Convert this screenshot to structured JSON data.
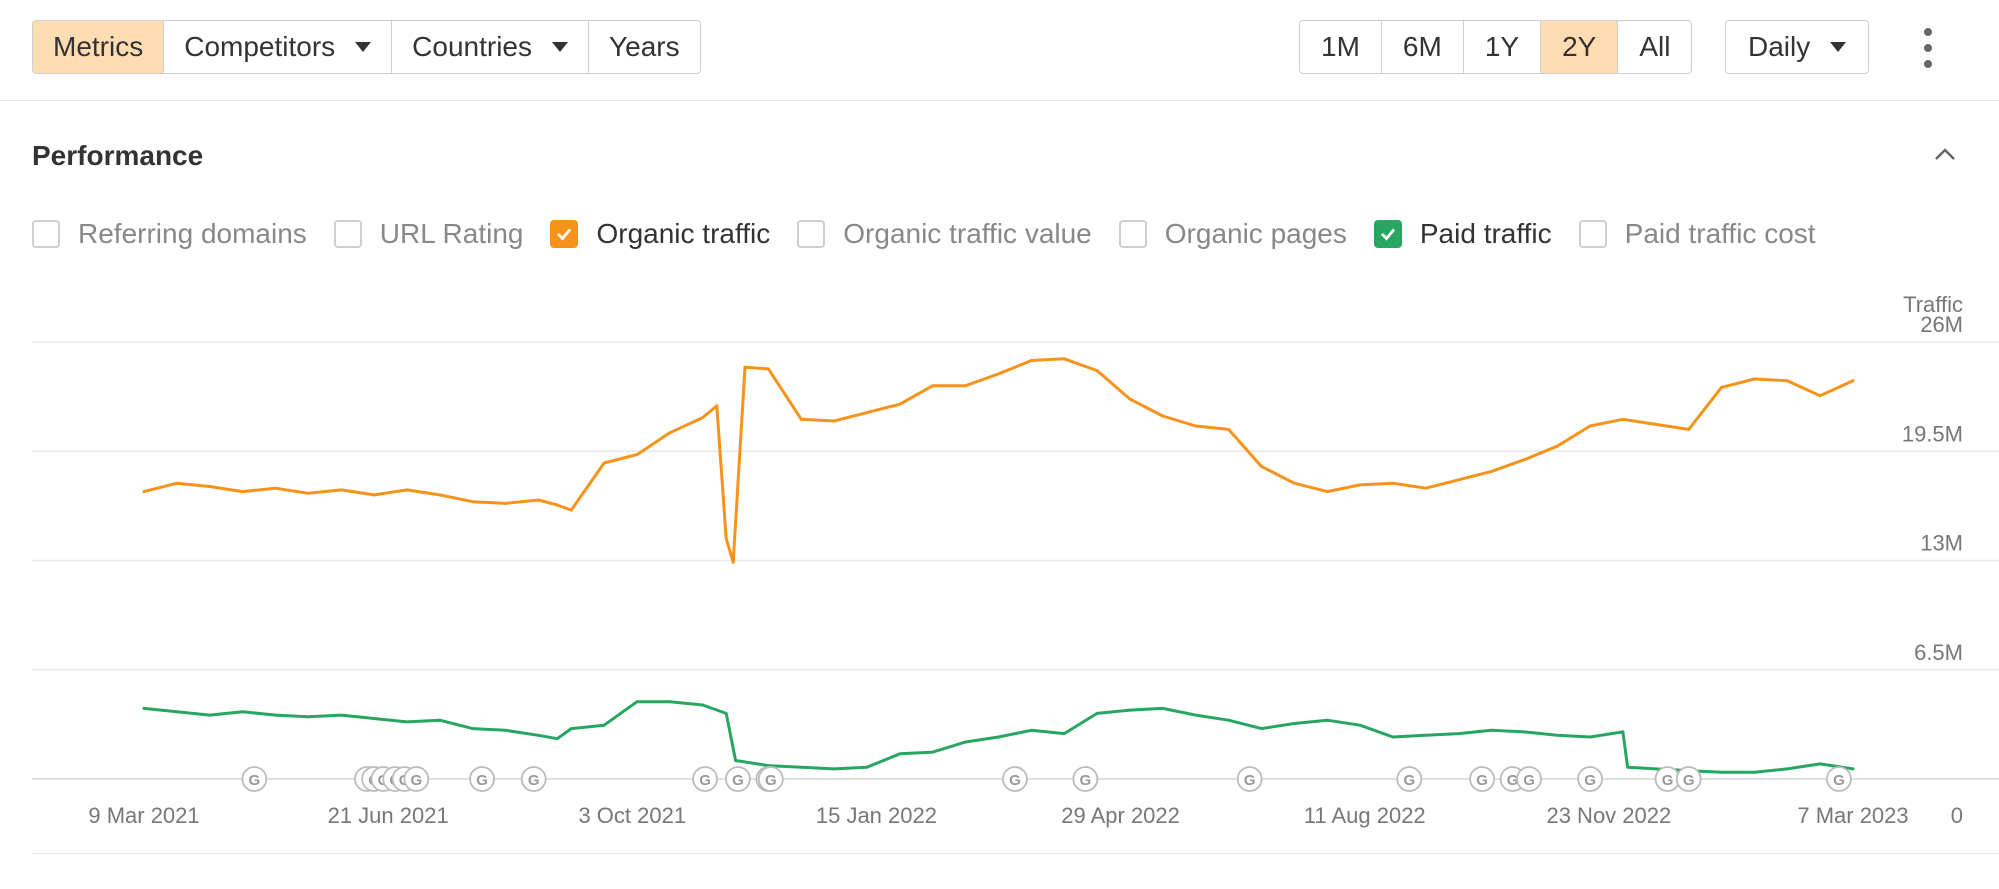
{
  "toolbar": {
    "left_buttons": [
      {
        "label": "Metrics",
        "active": true
      },
      {
        "label": "Competitors",
        "dropdown": true
      },
      {
        "label": "Countries",
        "dropdown": true
      },
      {
        "label": "Years"
      }
    ],
    "range_buttons": [
      "1M",
      "6M",
      "1Y",
      "2Y",
      "All"
    ],
    "range_active": "2Y",
    "interval": "Daily",
    "more_icon": "more-vertical-icon"
  },
  "section": {
    "title": "Performance",
    "collapse_icon": "chevron-up-icon"
  },
  "metrics": [
    {
      "label": "Referring domains",
      "checked": false,
      "color": "#cfcfcf"
    },
    {
      "label": "URL Rating",
      "checked": false,
      "color": "#cfcfcf"
    },
    {
      "label": "Organic traffic",
      "checked": true,
      "color": "#f7931a"
    },
    {
      "label": "Organic traffic value",
      "checked": false,
      "color": "#cfcfcf"
    },
    {
      "label": "Organic pages",
      "checked": false,
      "color": "#cfcfcf"
    },
    {
      "label": "Paid traffic",
      "checked": true,
      "color": "#27a661"
    },
    {
      "label": "Paid traffic cost",
      "checked": false,
      "color": "#cfcfcf"
    }
  ],
  "chart_data": {
    "type": "line",
    "ylabel": "Traffic",
    "ylim": [
      0,
      26000000
    ],
    "y_ticks": [
      "0",
      "6.5M",
      "13M",
      "19.5M",
      "26M"
    ],
    "y_tick_values": [
      0,
      6500000,
      13000000,
      19500000,
      26000000
    ],
    "xlim": [
      "2021-03-09",
      "2023-03-07"
    ],
    "x_ticks": [
      "9 Mar 2021",
      "21 Jun 2021",
      "3 Oct 2021",
      "15 Jan 2022",
      "29 Apr 2022",
      "11 Aug 2022",
      "23 Nov 2022",
      "7 Mar 2023"
    ],
    "x_tick_dates": [
      "2021-03-09",
      "2021-06-21",
      "2021-10-03",
      "2022-01-15",
      "2022-04-29",
      "2022-08-11",
      "2022-11-23",
      "2023-03-07"
    ],
    "grid": true,
    "legend": "none",
    "series": [
      {
        "name": "Organic traffic",
        "color": "#f7931a",
        "x": [
          "2021-03-09",
          "2021-03-23",
          "2021-04-06",
          "2021-04-20",
          "2021-05-04",
          "2021-05-18",
          "2021-06-01",
          "2021-06-15",
          "2021-06-29",
          "2021-07-13",
          "2021-07-27",
          "2021-08-10",
          "2021-08-24",
          "2021-09-01",
          "2021-09-07",
          "2021-09-21",
          "2021-10-05",
          "2021-10-19",
          "2021-11-02",
          "2021-11-08",
          "2021-11-12",
          "2021-11-15",
          "2021-11-20",
          "2021-11-30",
          "2021-12-14",
          "2021-12-28",
          "2022-01-11",
          "2022-01-25",
          "2022-02-08",
          "2022-02-22",
          "2022-03-08",
          "2022-03-22",
          "2022-04-05",
          "2022-04-19",
          "2022-05-03",
          "2022-05-17",
          "2022-05-31",
          "2022-06-14",
          "2022-06-28",
          "2022-07-12",
          "2022-07-26",
          "2022-08-09",
          "2022-08-23",
          "2022-09-06",
          "2022-09-20",
          "2022-10-04",
          "2022-10-18",
          "2022-11-01",
          "2022-11-15",
          "2022-11-29",
          "2022-12-13",
          "2022-12-27",
          "2023-01-10",
          "2023-01-24",
          "2023-02-07",
          "2023-02-21",
          "2023-03-07"
        ],
        "y": [
          17100000,
          17600000,
          17400000,
          17100000,
          17300000,
          17000000,
          17200000,
          16900000,
          17200000,
          16900000,
          16500000,
          16400000,
          16600000,
          16300000,
          16000000,
          18800000,
          19300000,
          20600000,
          21500000,
          22200000,
          14300000,
          12900000,
          24500000,
          24400000,
          21400000,
          21300000,
          21800000,
          22300000,
          23400000,
          23400000,
          24100000,
          24900000,
          25000000,
          24300000,
          22600000,
          21600000,
          21000000,
          20800000,
          18600000,
          17600000,
          17100000,
          17500000,
          17600000,
          17300000,
          17800000,
          18300000,
          19000000,
          19800000,
          21000000,
          21400000,
          21100000,
          20800000,
          23300000,
          23800000,
          23700000,
          22800000,
          23700000
        ]
      },
      {
        "name": "Paid traffic",
        "color": "#27a661",
        "x": [
          "2021-03-09",
          "2021-03-23",
          "2021-04-06",
          "2021-04-20",
          "2021-05-04",
          "2021-05-18",
          "2021-06-01",
          "2021-06-15",
          "2021-06-29",
          "2021-07-13",
          "2021-07-27",
          "2021-08-10",
          "2021-08-24",
          "2021-09-01",
          "2021-09-07",
          "2021-09-21",
          "2021-10-05",
          "2021-10-19",
          "2021-11-02",
          "2021-11-12",
          "2021-11-16",
          "2021-11-30",
          "2021-12-14",
          "2021-12-28",
          "2022-01-11",
          "2022-01-25",
          "2022-02-08",
          "2022-02-22",
          "2022-03-08",
          "2022-03-22",
          "2022-04-05",
          "2022-04-19",
          "2022-05-03",
          "2022-05-17",
          "2022-05-31",
          "2022-06-14",
          "2022-06-28",
          "2022-07-12",
          "2022-07-26",
          "2022-08-09",
          "2022-08-23",
          "2022-09-06",
          "2022-09-20",
          "2022-10-04",
          "2022-10-18",
          "2022-11-01",
          "2022-11-15",
          "2022-11-29",
          "2022-12-01",
          "2022-12-13",
          "2022-12-27",
          "2023-01-10",
          "2023-01-24",
          "2023-02-07",
          "2023-02-21",
          "2023-03-07"
        ],
        "y": [
          4200000,
          4000000,
          3800000,
          4000000,
          3800000,
          3700000,
          3800000,
          3600000,
          3400000,
          3500000,
          3000000,
          2900000,
          2600000,
          2400000,
          3000000,
          3200000,
          4600000,
          4600000,
          4400000,
          3900000,
          1100000,
          800000,
          700000,
          600000,
          700000,
          1500000,
          1600000,
          2200000,
          2500000,
          2900000,
          2700000,
          3900000,
          4100000,
          4200000,
          3800000,
          3500000,
          3000000,
          3300000,
          3500000,
          3200000,
          2500000,
          2600000,
          2700000,
          2900000,
          2800000,
          2600000,
          2500000,
          2800000,
          700000,
          600000,
          500000,
          400000,
          400000,
          600000,
          900000,
          600000
        ]
      }
    ],
    "annotations": {
      "google_updates_icon": "google-update-icon",
      "google_update_dates": [
        "2021-04-25",
        "2021-06-12",
        "2021-06-15",
        "2021-06-19",
        "2021-06-24",
        "2021-06-28",
        "2021-07-03",
        "2021-07-31",
        "2021-08-22",
        "2021-11-03",
        "2021-11-17",
        "2021-11-30",
        "2021-12-01",
        "2022-03-15",
        "2022-04-14",
        "2022-06-23",
        "2022-08-30",
        "2022-09-30",
        "2022-10-13",
        "2022-10-20",
        "2022-11-15",
        "2022-12-18",
        "2022-12-27",
        "2023-03-01"
      ],
      "google_update_label": "G"
    }
  }
}
